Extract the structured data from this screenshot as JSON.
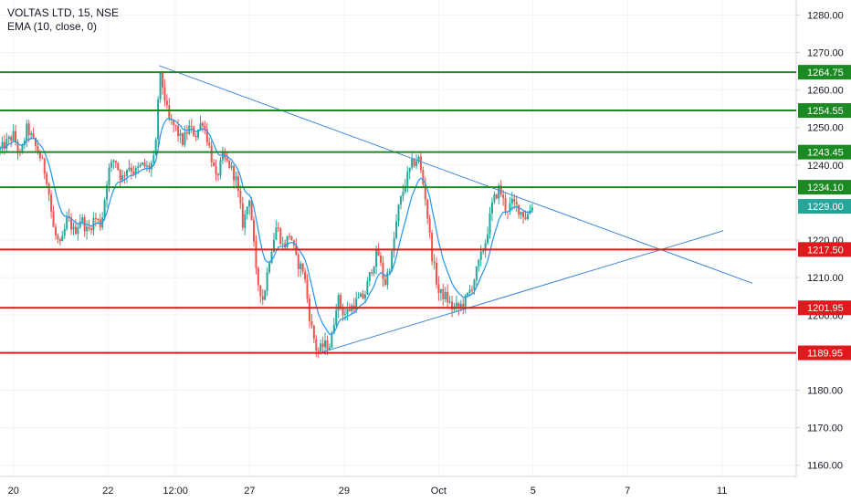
{
  "chart_data": {
    "type": "candlestick",
    "title": "VOLTAS LTD, 15, NSE",
    "indicator": "EMA (10, close, 0)",
    "ylim": [
      1157,
      1284
    ],
    "yticks": [
      1280,
      1270,
      1260,
      1250,
      1240,
      1220,
      1210,
      1200,
      1180,
      1170,
      1160
    ],
    "ytick_labels": [
      "1280.00",
      "1270.00",
      "1260.00",
      "1250.00",
      "1240.00",
      "1220.00",
      "1210.00",
      "1200.00",
      "1180.00",
      "1170.00",
      "1160.00"
    ],
    "xlim": [
      0,
      118
    ],
    "xticks": [
      {
        "x": 2,
        "label": "20"
      },
      {
        "x": 16,
        "label": "22"
      },
      {
        "x": 26,
        "label": "12:00"
      },
      {
        "x": 37,
        "label": "27"
      },
      {
        "x": 51,
        "label": "29"
      },
      {
        "x": 65,
        "label": "Oct"
      },
      {
        "x": 79,
        "label": "5"
      },
      {
        "x": 93,
        "label": "7"
      },
      {
        "x": 107,
        "label": "11"
      }
    ],
    "grid": true,
    "levels": [
      {
        "value": 1264.75,
        "label": "1264.75",
        "color": "#1b8a22"
      },
      {
        "value": 1254.55,
        "label": "1254.55",
        "color": "#1b8a22"
      },
      {
        "value": 1243.45,
        "label": "1243.45",
        "color": "#1b8a22"
      },
      {
        "value": 1234.1,
        "label": "1234.10",
        "color": "#1b8a22"
      },
      {
        "value": 1217.5,
        "label": "1217.50",
        "color": "#e0191c"
      },
      {
        "value": 1201.95,
        "label": "1201.95",
        "color": "#e0191c"
      },
      {
        "value": 1189.95,
        "label": "1189.95",
        "color": "#e0191c"
      }
    ],
    "last_price": {
      "value": 1229.0,
      "label": "1229.00",
      "color": "#26a69a"
    },
    "trendlines": [
      {
        "x1": 23.6,
        "y1": 1266.5,
        "x2": 111.5,
        "y2": 1208.5,
        "color": "#3d86d8"
      },
      {
        "x1": 47.5,
        "y1": 1190.0,
        "x2": 107.2,
        "y2": 1222.5,
        "color": "#3d86d8"
      }
    ],
    "candle_colors": {
      "up": "#26a69a",
      "down": "#ef5350"
    },
    "ema_color": "#2196f3",
    "price_path": [
      [
        0,
        1244
      ],
      [
        2,
        1248
      ],
      [
        3,
        1242
      ],
      [
        4,
        1250
      ],
      [
        5,
        1246
      ],
      [
        6,
        1242
      ],
      [
        7,
        1236
      ],
      [
        8,
        1222
      ],
      [
        9,
        1218
      ],
      [
        10,
        1226
      ],
      [
        11,
        1222
      ],
      [
        12,
        1226
      ],
      [
        13,
        1222
      ],
      [
        14,
        1226
      ],
      [
        15,
        1224
      ],
      [
        16,
        1238
      ],
      [
        17,
        1242
      ],
      [
        18,
        1236
      ],
      [
        19,
        1240
      ],
      [
        20,
        1238
      ],
      [
        21,
        1240
      ],
      [
        22,
        1239
      ],
      [
        23,
        1242
      ],
      [
        23.6,
        1264
      ],
      [
        24,
        1262
      ],
      [
        25,
        1252
      ],
      [
        26,
        1250
      ],
      [
        27,
        1246
      ],
      [
        28,
        1250
      ],
      [
        29,
        1248
      ],
      [
        30,
        1252
      ],
      [
        31,
        1245
      ],
      [
        32,
        1236
      ],
      [
        33,
        1242
      ],
      [
        34,
        1240
      ],
      [
        35,
        1236
      ],
      [
        36,
        1224
      ],
      [
        37,
        1232
      ],
      [
        38,
        1210
      ],
      [
        39,
        1204
      ],
      [
        40,
        1216
      ],
      [
        41,
        1224
      ],
      [
        42,
        1218
      ],
      [
        43,
        1222
      ],
      [
        44,
        1214
      ],
      [
        45,
        1212
      ],
      [
        46,
        1198
      ],
      [
        47,
        1190
      ],
      [
        48,
        1192
      ],
      [
        49,
        1192
      ],
      [
        50,
        1205
      ],
      [
        51,
        1200
      ],
      [
        52,
        1202
      ],
      [
        53,
        1204
      ],
      [
        54,
        1205
      ],
      [
        55,
        1212
      ],
      [
        56,
        1217
      ],
      [
        57,
        1208
      ],
      [
        58,
        1215
      ],
      [
        59,
        1228
      ],
      [
        60,
        1235
      ],
      [
        61,
        1240
      ],
      [
        62,
        1242
      ],
      [
        63,
        1232
      ],
      [
        64,
        1216
      ],
      [
        65,
        1206
      ],
      [
        66,
        1205
      ],
      [
        67,
        1202
      ],
      [
        68,
        1202
      ],
      [
        69,
        1204
      ],
      [
        70,
        1208
      ],
      [
        71,
        1214
      ],
      [
        72,
        1220
      ],
      [
        73,
        1230
      ],
      [
        74,
        1234
      ],
      [
        75,
        1228
      ],
      [
        76,
        1230
      ],
      [
        77,
        1228
      ],
      [
        78,
        1226
      ],
      [
        79,
        1230
      ]
    ]
  }
}
